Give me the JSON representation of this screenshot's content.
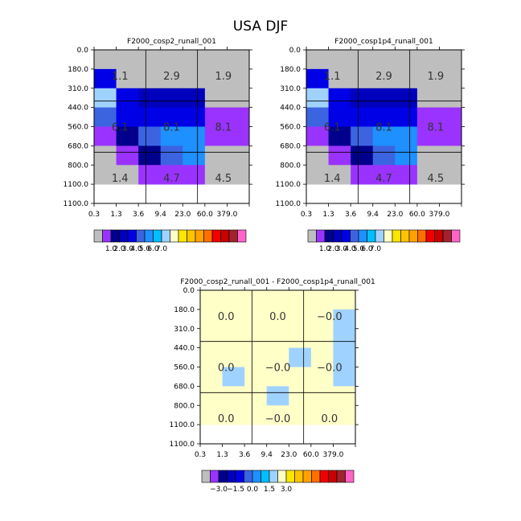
{
  "page_title": "USA DJF",
  "colors": {
    "gray": "#bebebe",
    "lbl1": [
      "#bebebe",
      "#9a33ff",
      "#00008c",
      "#0000bd",
      "#0000e6",
      "#3c64e1",
      "#1e90ff",
      "#00bfff",
      "#a0d2ff",
      "#ffffc8",
      "#fae600",
      "#ffc400",
      "#ffa200",
      "#ff6f00",
      "#f00000",
      "#c80000",
      "#a0232d",
      "#ff64c8"
    ],
    "lbl2": [
      "#bebebe",
      "#9a33ff",
      "#00008c",
      "#0000bd",
      "#0000e6",
      "#3c64e1",
      "#1e90ff",
      "#00bfff",
      "#a0d2ff",
      "#ffffc8",
      "#fae600",
      "#ffc400",
      "#ffa200",
      "#ff6f00",
      "#f00000",
      "#c80000",
      "#a0232d",
      "#ff64c8"
    ]
  },
  "chart_data": [
    {
      "type": "heatmap",
      "title": "F2000_cosp2_runall_001",
      "x_edges": [
        "0.3",
        "1.3",
        "3.6",
        "9.4",
        "23.0",
        "60.0",
        "379.0"
      ],
      "y_edges": [
        "0.0",
        "180.0",
        "310.0",
        "440.0",
        "560.0",
        "680.0",
        "800.0",
        "1100.0"
      ],
      "cells": [
        [
          "#bebebe",
          "#bebebe",
          "#bebebe",
          "#bebebe",
          "#bebebe",
          "#bebebe",
          "#bebebe"
        ],
        [
          "#0000e6",
          "#bebebe",
          "#bebebe",
          "#bebebe",
          "#bebebe",
          "#bebebe",
          "#bebebe"
        ],
        [
          "#a0d2ff",
          "#0000e6",
          "#0000bd",
          "#0000bd",
          "#0000bd",
          "#bebebe",
          "#bebebe"
        ],
        [
          "#3c64e1",
          "#0000e6",
          "#0000e6",
          "#0000e6",
          "#0000e6",
          "#9a33ff",
          "#9a33ff"
        ],
        [
          "#9a33ff",
          "#00008c",
          "#3c64e1",
          "#1e90ff",
          "#1e90ff",
          "#9a33ff",
          "#9a33ff"
        ],
        [
          "#bebebe",
          "#9a33ff",
          "#00008c",
          "#3c64e1",
          "#1e90ff",
          "#bebebe",
          "#bebebe"
        ],
        [
          "#bebebe",
          "#bebebe",
          "#9a33ff",
          "#9a33ff",
          "#9a33ff",
          "#bebebe",
          "#bebebe"
        ]
      ],
      "annotations": [
        [
          "1.1",
          "2.9",
          "1.9"
        ],
        [
          "6.1",
          "8.1",
          "8.1"
        ],
        [
          "1.4",
          "4.7",
          "4.5"
        ]
      ],
      "colorbar_ticks": [
        "1.0",
        "2.0",
        "3.0",
        "4.0",
        "5.0",
        "6.0",
        "7.0"
      ]
    },
    {
      "type": "heatmap",
      "title": "F2000_cosp1p4_runall_001",
      "x_edges": [
        "0.3",
        "1.3",
        "3.6",
        "9.4",
        "23.0",
        "60.0",
        "379.0"
      ],
      "y_edges": [
        "0.0",
        "180.0",
        "310.0",
        "440.0",
        "560.0",
        "680.0",
        "800.0",
        "1100.0"
      ],
      "cells": [
        [
          "#bebebe",
          "#bebebe",
          "#bebebe",
          "#bebebe",
          "#bebebe",
          "#bebebe",
          "#bebebe"
        ],
        [
          "#0000e6",
          "#bebebe",
          "#bebebe",
          "#bebebe",
          "#bebebe",
          "#bebebe",
          "#bebebe"
        ],
        [
          "#a0d2ff",
          "#0000e6",
          "#0000bd",
          "#0000bd",
          "#0000bd",
          "#bebebe",
          "#bebebe"
        ],
        [
          "#3c64e1",
          "#0000e6",
          "#0000e6",
          "#0000e6",
          "#0000e6",
          "#9a33ff",
          "#9a33ff"
        ],
        [
          "#9a33ff",
          "#00008c",
          "#3c64e1",
          "#1e90ff",
          "#1e90ff",
          "#9a33ff",
          "#9a33ff"
        ],
        [
          "#bebebe",
          "#9a33ff",
          "#00008c",
          "#3c64e1",
          "#1e90ff",
          "#bebebe",
          "#bebebe"
        ],
        [
          "#bebebe",
          "#bebebe",
          "#9a33ff",
          "#9a33ff",
          "#9a33ff",
          "#bebebe",
          "#bebebe"
        ]
      ],
      "annotations": [
        [
          "1.1",
          "2.9",
          "1.9"
        ],
        [
          "6.1",
          "8.1",
          "8.1"
        ],
        [
          "1.4",
          "4.7",
          "4.5"
        ]
      ],
      "colorbar_ticks": [
        "1.0",
        "2.0",
        "3.0",
        "4.0",
        "5.0",
        "6.0",
        "7.0"
      ]
    },
    {
      "type": "heatmap",
      "title": "F2000_cosp2_runall_001 - F2000_cosp1p4_runall_001",
      "x_edges": [
        "0.3",
        "1.3",
        "3.6",
        "9.4",
        "23.0",
        "60.0",
        "379.0"
      ],
      "y_edges": [
        "0.0",
        "180.0",
        "310.0",
        "440.0",
        "560.0",
        "680.0",
        "800.0",
        "1100.0"
      ],
      "cells": [
        [
          "#ffffc8",
          "#ffffc8",
          "#ffffc8",
          "#ffffc8",
          "#ffffc8",
          "#ffffc8",
          "#ffffc8"
        ],
        [
          "#ffffc8",
          "#ffffc8",
          "#ffffc8",
          "#ffffc8",
          "#ffffc8",
          "#ffffc8",
          "#a0d2ff"
        ],
        [
          "#ffffc8",
          "#ffffc8",
          "#ffffc8",
          "#ffffc8",
          "#ffffc8",
          "#ffffc8",
          "#a0d2ff"
        ],
        [
          "#ffffc8",
          "#ffffc8",
          "#ffffc8",
          "#ffffc8",
          "#a0d2ff",
          "#ffffc8",
          "#a0d2ff"
        ],
        [
          "#ffffc8",
          "#a0d2ff",
          "#ffffc8",
          "#ffffc8",
          "#ffffc8",
          "#ffffc8",
          "#a0d2ff"
        ],
        [
          "#ffffc8",
          "#ffffc8",
          "#ffffc8",
          "#a0d2ff",
          "#ffffc8",
          "#ffffc8",
          "#ffffc8"
        ],
        [
          "#ffffc8",
          "#ffffc8",
          "#ffffc8",
          "#ffffc8",
          "#ffffc8",
          "#ffffc8",
          "#ffffc8"
        ]
      ],
      "annotations": [
        [
          "0.0",
          "0.0",
          "−0.0"
        ],
        [
          "0.0",
          "−0.0",
          "−0.0"
        ],
        [
          "0.0",
          "−0.0",
          "0.0"
        ]
      ],
      "colorbar_ticks": [
        "−3.0",
        "−1.5",
        "0.0",
        "1.5",
        "3.0"
      ]
    }
  ]
}
